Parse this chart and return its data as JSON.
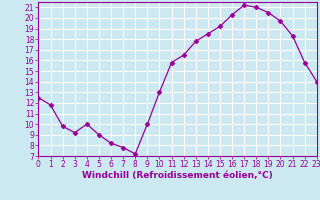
{
  "x": [
    0,
    1,
    2,
    3,
    4,
    5,
    6,
    7,
    8,
    9,
    10,
    11,
    12,
    13,
    14,
    15,
    16,
    17,
    18,
    19,
    20,
    21,
    22,
    23
  ],
  "y": [
    12.5,
    11.8,
    9.8,
    9.2,
    10.0,
    9.0,
    8.2,
    7.8,
    7.2,
    10.0,
    13.0,
    15.8,
    16.5,
    17.8,
    18.5,
    19.2,
    20.3,
    21.2,
    21.0,
    20.5,
    19.7,
    18.3,
    15.8,
    14.0
  ],
  "line_color": "#990099",
  "marker": "D",
  "marker_size": 2.5,
  "bg_color": "#cce8f0",
  "grid_color": "#ffffff",
  "xlabel": "Windchill (Refroidissement éolien,°C)",
  "xlabel_color": "#990099",
  "xlim": [
    0,
    23
  ],
  "ylim": [
    7,
    21.5
  ],
  "yticks": [
    7,
    8,
    9,
    10,
    11,
    12,
    13,
    14,
    15,
    16,
    17,
    18,
    19,
    20,
    21
  ],
  "xticks": [
    0,
    1,
    2,
    3,
    4,
    5,
    6,
    7,
    8,
    9,
    10,
    11,
    12,
    13,
    14,
    15,
    16,
    17,
    18,
    19,
    20,
    21,
    22,
    23
  ],
  "tick_fontsize": 5.5,
  "xlabel_fontsize": 6.5
}
